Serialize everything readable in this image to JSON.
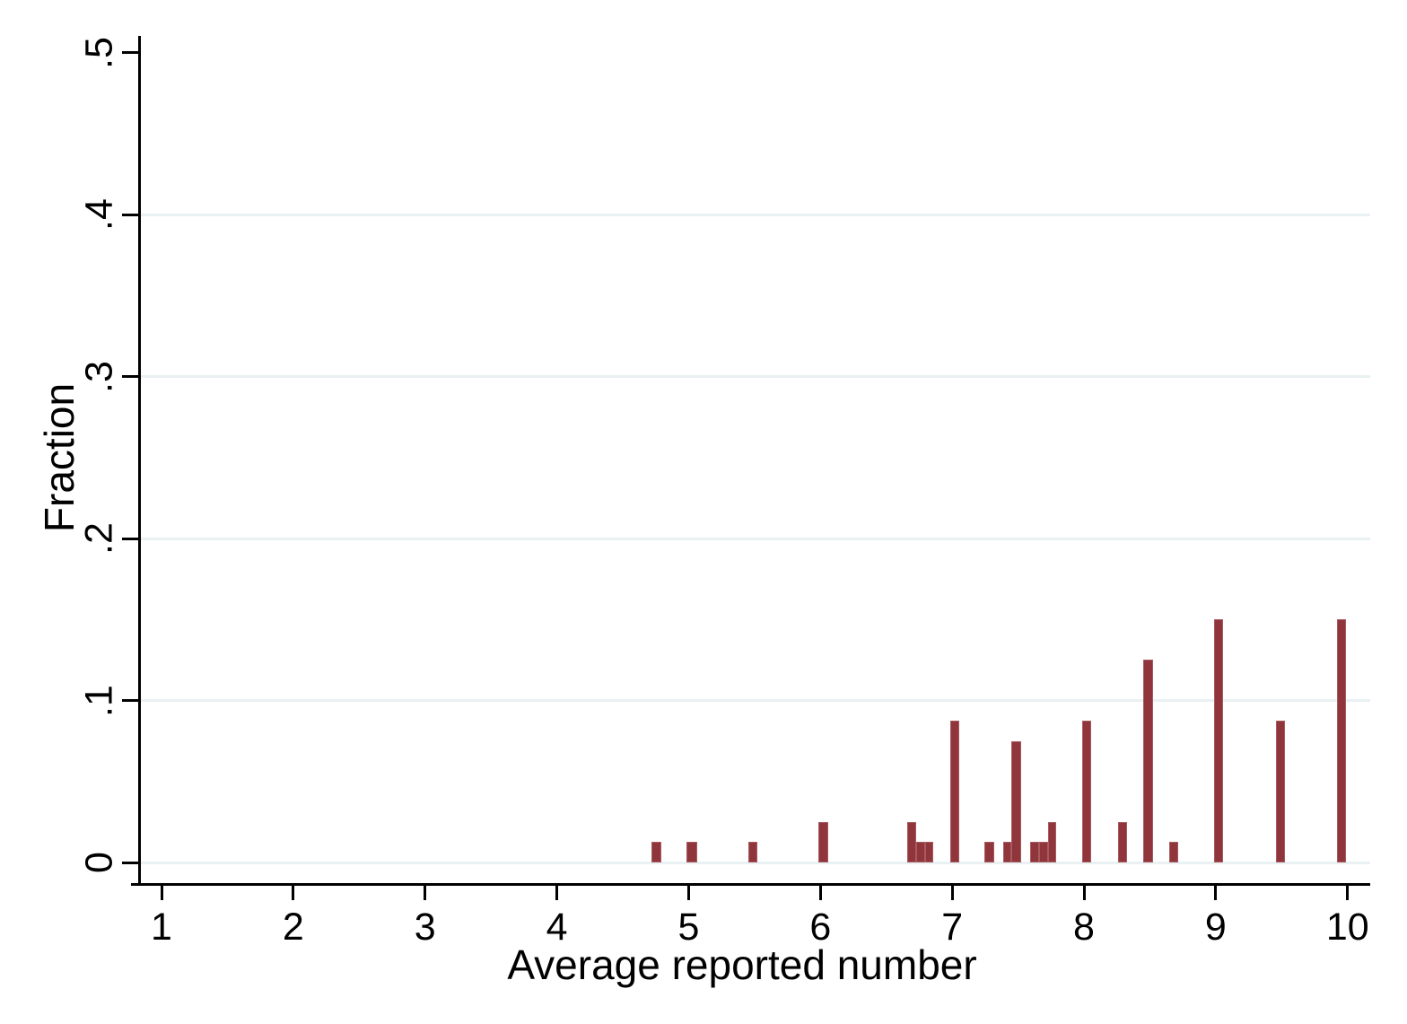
{
  "chart_data": {
    "type": "bar",
    "title": "",
    "xlabel": "Average reported number",
    "ylabel": "Fraction",
    "grid": "horizontal",
    "legend": "none",
    "xlim": [
      0.84,
      10.17
    ],
    "ylim": [
      0,
      0.5
    ],
    "x_ticks": [
      {
        "value": 1,
        "label": "1"
      },
      {
        "value": 2,
        "label": "2"
      },
      {
        "value": 3,
        "label": "3"
      },
      {
        "value": 4,
        "label": "4"
      },
      {
        "value": 5,
        "label": "5"
      },
      {
        "value": 6,
        "label": "6"
      },
      {
        "value": 7,
        "label": "7"
      },
      {
        "value": 8,
        "label": "8"
      },
      {
        "value": 9,
        "label": "9"
      },
      {
        "value": 10,
        "label": "10"
      }
    ],
    "y_ticks": [
      {
        "value": 0.0,
        "label": "0",
        "gridline": true
      },
      {
        "value": 0.1,
        "label": ".1",
        "gridline": true
      },
      {
        "value": 0.2,
        "label": ".2",
        "gridline": true
      },
      {
        "value": 0.3,
        "label": ".3",
        "gridline": true
      },
      {
        "value": 0.4,
        "label": ".4",
        "gridline": true
      },
      {
        "value": 0.5,
        "label": ".5",
        "gridline": false
      }
    ],
    "bars": [
      {
        "x_left": 4.715,
        "x_right": 4.79,
        "fraction": 0.0125
      },
      {
        "x_left": 4.983,
        "x_right": 5.063,
        "fraction": 0.0125
      },
      {
        "x_left": 5.452,
        "x_right": 5.523,
        "fraction": 0.0125
      },
      {
        "x_left": 5.986,
        "x_right": 6.061,
        "fraction": 0.025
      },
      {
        "x_left": 6.656,
        "x_right": 6.728,
        "fraction": 0.025
      },
      {
        "x_left": 6.728,
        "x_right": 6.792,
        "fraction": 0.0125
      },
      {
        "x_left": 6.792,
        "x_right": 6.855,
        "fraction": 0.0125
      },
      {
        "x_left": 6.987,
        "x_right": 7.055,
        "fraction": 0.0875
      },
      {
        "x_left": 7.241,
        "x_right": 7.32,
        "fraction": 0.0125
      },
      {
        "x_left": 7.384,
        "x_right": 7.446,
        "fraction": 0.0125
      },
      {
        "x_left": 7.446,
        "x_right": 7.521,
        "fraction": 0.075
      },
      {
        "x_left": 7.589,
        "x_right": 7.661,
        "fraction": 0.0125
      },
      {
        "x_left": 7.661,
        "x_right": 7.725,
        "fraction": 0.0125
      },
      {
        "x_left": 7.725,
        "x_right": 7.786,
        "fraction": 0.025
      },
      {
        "x_left": 7.984,
        "x_right": 8.054,
        "fraction": 0.0875
      },
      {
        "x_left": 8.258,
        "x_right": 8.326,
        "fraction": 0.025
      },
      {
        "x_left": 8.449,
        "x_right": 8.524,
        "fraction": 0.125
      },
      {
        "x_left": 8.646,
        "x_right": 8.714,
        "fraction": 0.0125
      },
      {
        "x_left": 8.985,
        "x_right": 9.053,
        "fraction": 0.15
      },
      {
        "x_left": 9.454,
        "x_right": 9.523,
        "fraction": 0.0875
      },
      {
        "x_left": 9.919,
        "x_right": 9.987,
        "fraction": 0.15
      }
    ],
    "colors": {
      "bar_fill": "#90353b",
      "bar_edge": "#a65b5f",
      "gridline": "#e9f1f2",
      "axis": "#000000",
      "text": "#000000",
      "background": "#ffffff"
    }
  }
}
